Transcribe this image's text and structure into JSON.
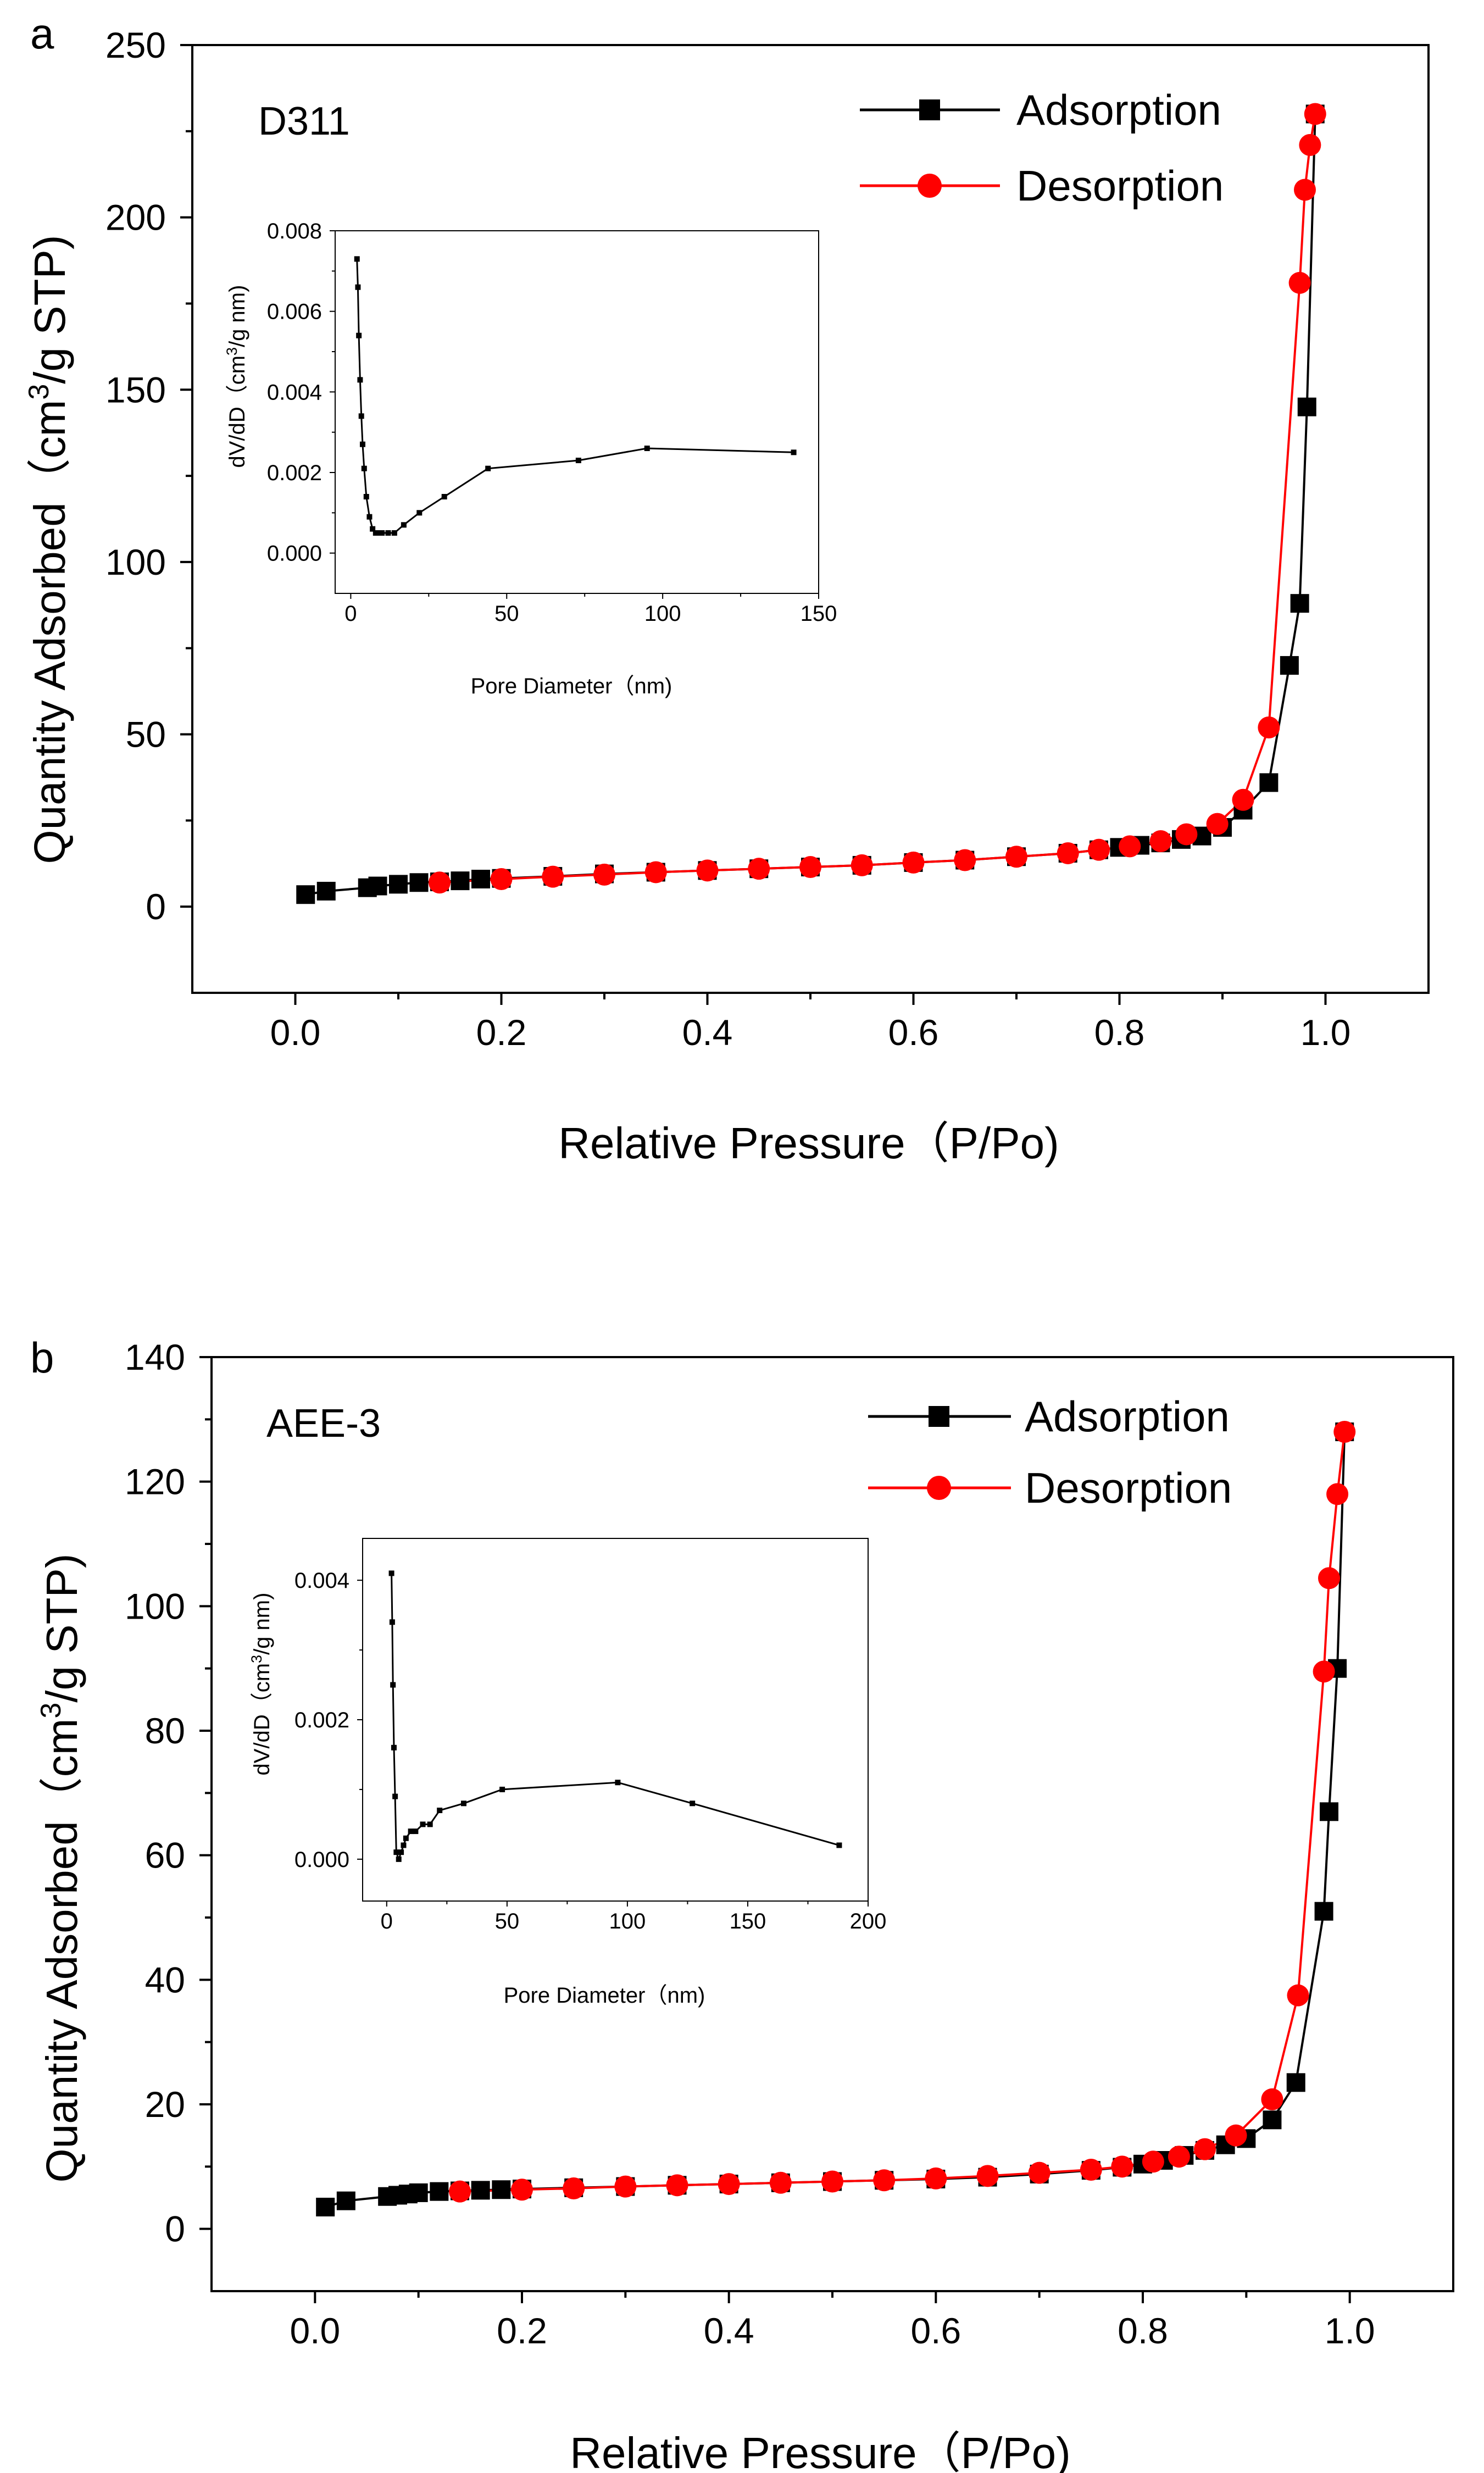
{
  "chart_data": [
    {
      "type": "scatter",
      "panel_label": "a",
      "sample": "D311",
      "xlabel": "Relative Pressure（P/Po)",
      "ylabel_parts": [
        "Quantity Adsorbed（cm",
        "3",
        "/g STP)"
      ],
      "xlim": [
        -0.1,
        1.1
      ],
      "ylim": [
        -25,
        250
      ],
      "xticks": [
        0.0,
        0.2,
        0.4,
        0.6,
        0.8,
        1.0
      ],
      "xtick_labels": [
        "0.0",
        "0.2",
        "0.4",
        "0.6",
        "0.8",
        "1.0"
      ],
      "yticks": [
        0,
        50,
        100,
        150,
        200,
        250
      ],
      "ytick_labels": [
        "0",
        "50",
        "100",
        "150",
        "200",
        "250"
      ],
      "legend_position": "top-right",
      "series": [
        {
          "name": "Adsorption",
          "color": "#000000",
          "marker": "square",
          "x": [
            0.01,
            0.03,
            0.07,
            0.08,
            0.1,
            0.12,
            0.14,
            0.16,
            0.18,
            0.2,
            0.25,
            0.3,
            0.35,
            0.4,
            0.45,
            0.5,
            0.55,
            0.6,
            0.65,
            0.7,
            0.75,
            0.78,
            0.8,
            0.82,
            0.84,
            0.86,
            0.88,
            0.9,
            0.92,
            0.945,
            0.965,
            0.975,
            0.982,
            0.99
          ],
          "y": [
            3.5,
            4.5,
            5.5,
            6.0,
            6.5,
            7.0,
            7.2,
            7.5,
            8.0,
            8.2,
            8.8,
            9.5,
            10,
            10.5,
            11,
            11.5,
            12,
            12.8,
            13.5,
            14.5,
            15.5,
            16.5,
            17.2,
            17.8,
            18.5,
            19.5,
            20.5,
            23,
            28,
            36,
            70,
            88,
            145,
            230
          ]
        },
        {
          "name": "Desorption",
          "color": "#ff0000",
          "marker": "circle",
          "x": [
            0.14,
            0.2,
            0.25,
            0.3,
            0.35,
            0.4,
            0.45,
            0.5,
            0.55,
            0.6,
            0.65,
            0.7,
            0.75,
            0.78,
            0.81,
            0.84,
            0.865,
            0.895,
            0.92,
            0.945,
            0.975,
            0.98,
            0.985,
            0.99
          ],
          "y": [
            7.0,
            8.0,
            8.7,
            9.3,
            10,
            10.5,
            11,
            11.5,
            12,
            12.8,
            13.5,
            14.5,
            15.5,
            16.5,
            17.5,
            19,
            21,
            24,
            31,
            52,
            181,
            208,
            221,
            230
          ]
        }
      ],
      "inset": {
        "type": "line",
        "xlabel": "Pore Diameter（nm)",
        "ylabel_parts": [
          "dV/dD（cm",
          "3",
          "/g nm)"
        ],
        "xlim": [
          -5,
          150
        ],
        "ylim": [
          -0.001,
          0.008
        ],
        "xticks": [
          0,
          50,
          100,
          150
        ],
        "xtick_labels": [
          "0",
          "50",
          "100",
          "150"
        ],
        "yticks": [
          0.0,
          0.002,
          0.004,
          0.006,
          0.008
        ],
        "ytick_labels": [
          "0.000",
          "0.002",
          "0.004",
          "0.006",
          "0.008"
        ],
        "x": [
          2,
          2.3,
          2.6,
          3,
          3.4,
          3.8,
          4.3,
          5,
          6,
          7,
          8,
          9,
          10,
          12,
          14,
          17,
          22,
          30,
          44,
          73,
          95,
          142
        ],
        "y": [
          0.0073,
          0.0066,
          0.0054,
          0.0043,
          0.0034,
          0.0027,
          0.0021,
          0.0014,
          0.0009,
          0.0006,
          0.0005,
          0.0005,
          0.0005,
          0.0005,
          0.0005,
          0.0007,
          0.001,
          0.0014,
          0.0021,
          0.0023,
          0.0026,
          0.0025
        ]
      }
    },
    {
      "type": "scatter",
      "panel_label": "b",
      "sample": "AEE-3",
      "xlabel": "Relative Pressure（P/Po)",
      "ylabel_parts": [
        "Quantity Adsorbed（cm",
        "3",
        "/g STP)"
      ],
      "xlim": [
        -0.1,
        1.1
      ],
      "ylim": [
        -10,
        140
      ],
      "xticks": [
        0.0,
        0.2,
        0.4,
        0.6,
        0.8,
        1.0
      ],
      "xtick_labels": [
        "0.0",
        "0.2",
        "0.4",
        "0.6",
        "0.8",
        "1.0"
      ],
      "yticks": [
        0,
        20,
        40,
        60,
        80,
        100,
        120,
        140
      ],
      "ytick_labels": [
        "0",
        "20",
        "40",
        "60",
        "80",
        "100",
        "120",
        "140"
      ],
      "legend_position": "top-right",
      "series": [
        {
          "name": "Adsorption",
          "color": "#000000",
          "marker": "square",
          "x": [
            0.01,
            0.03,
            0.07,
            0.08,
            0.09,
            0.1,
            0.12,
            0.14,
            0.16,
            0.18,
            0.2,
            0.25,
            0.3,
            0.35,
            0.4,
            0.45,
            0.5,
            0.55,
            0.6,
            0.65,
            0.7,
            0.75,
            0.78,
            0.8,
            0.82,
            0.84,
            0.86,
            0.88,
            0.9,
            0.925,
            0.948,
            0.975,
            0.98,
            0.988,
            0.995
          ],
          "y": [
            3.5,
            4.5,
            5.2,
            5.4,
            5.6,
            5.8,
            6.0,
            6.1,
            6.2,
            6.3,
            6.4,
            6.6,
            6.8,
            7.0,
            7.2,
            7.4,
            7.6,
            7.8,
            8.0,
            8.3,
            8.8,
            9.4,
            9.9,
            10.4,
            11.0,
            11.8,
            12.6,
            13.5,
            14.5,
            17.5,
            23.5,
            51,
            67,
            90,
            128
          ]
        },
        {
          "name": "Desorption",
          "color": "#ff0000",
          "marker": "circle",
          "x": [
            0.14,
            0.2,
            0.25,
            0.3,
            0.35,
            0.4,
            0.45,
            0.5,
            0.55,
            0.6,
            0.65,
            0.7,
            0.75,
            0.78,
            0.81,
            0.835,
            0.86,
            0.89,
            0.925,
            0.95,
            0.975,
            0.98,
            0.988,
            0.995
          ],
          "y": [
            6.0,
            6.3,
            6.5,
            6.8,
            7.0,
            7.2,
            7.4,
            7.6,
            7.8,
            8.1,
            8.5,
            9.0,
            9.5,
            10.0,
            10.8,
            11.6,
            12.8,
            15.0,
            20.8,
            37.5,
            89.5,
            104.5,
            118,
            128
          ]
        }
      ],
      "inset": {
        "type": "line",
        "xlabel": "Pore Diameter（nm)",
        "ylabel_parts": [
          "dV/dD（cm",
          "3",
          "/g nm)"
        ],
        "xlim": [
          -10,
          200
        ],
        "ylim": [
          -0.0006,
          0.0046
        ],
        "xticks": [
          0,
          50,
          100,
          150,
          200
        ],
        "xtick_labels": [
          "0",
          "50",
          "100",
          "150",
          "200"
        ],
        "yticks": [
          0.0,
          0.002,
          0.004
        ],
        "ytick_labels": [
          "0.000",
          "0.002",
          "0.004"
        ],
        "x": [
          2,
          2.3,
          2.6,
          3,
          3.5,
          4,
          5,
          6,
          7,
          8,
          10,
          12,
          15,
          18,
          22,
          32,
          48,
          96,
          127,
          188
        ],
        "y": [
          0.0041,
          0.0034,
          0.0025,
          0.0016,
          0.0009,
          0.0001,
          0.0,
          0.0001,
          0.0002,
          0.0003,
          0.0004,
          0.0004,
          0.0005,
          0.0005,
          0.0007,
          0.0008,
          0.001,
          0.0011,
          0.0008,
          0.0002
        ]
      }
    }
  ]
}
